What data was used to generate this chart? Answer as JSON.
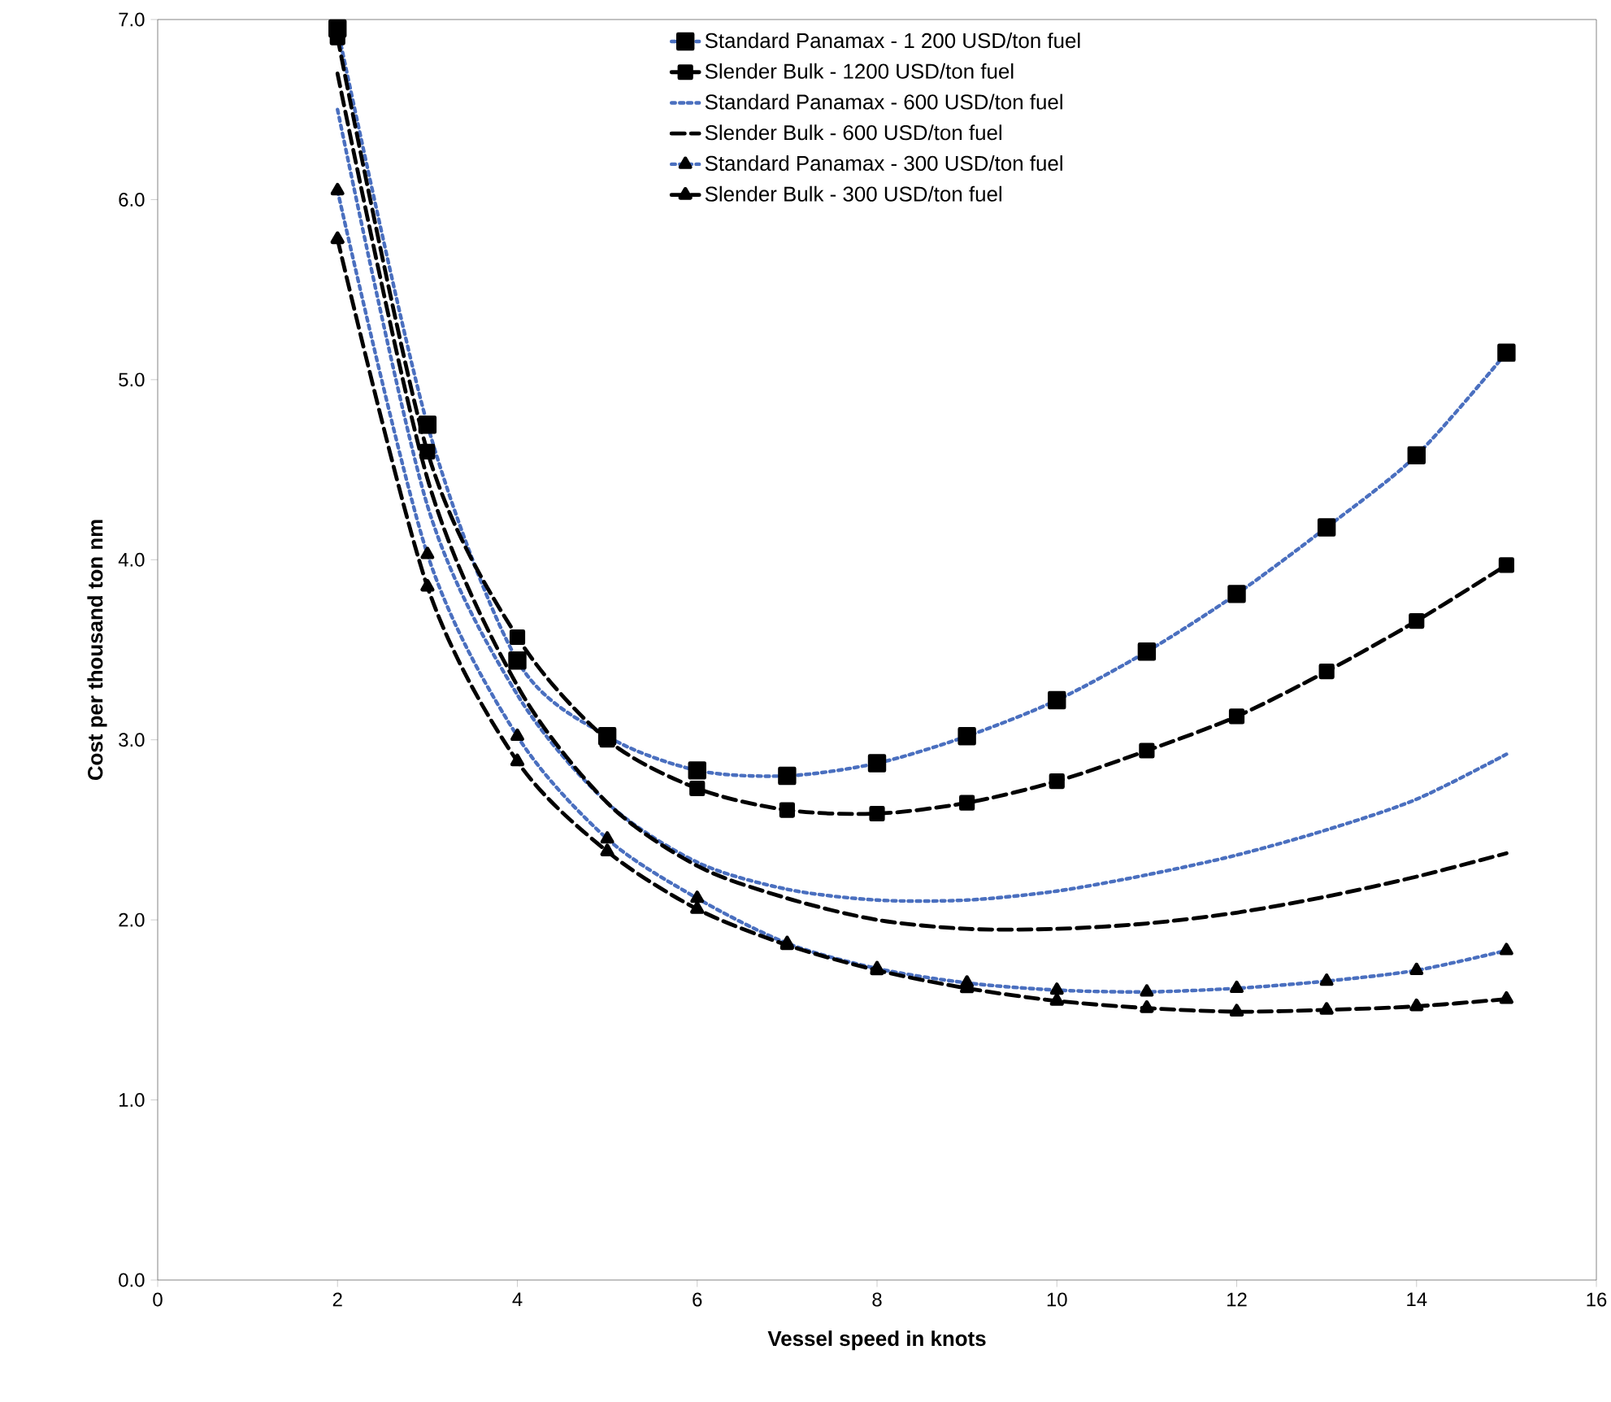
{
  "chart_data": {
    "type": "line",
    "xlabel": "Vessel speed in knots",
    "ylabel": "Cost per thousand ton nm",
    "x": [
      2,
      3,
      4,
      5,
      6,
      7,
      8,
      9,
      10,
      11,
      12,
      13,
      14,
      15
    ],
    "xlim": [
      0,
      16
    ],
    "xticks": [
      0,
      2,
      4,
      6,
      8,
      10,
      12,
      14,
      16
    ],
    "ylim": [
      0,
      7
    ],
    "yticks": [
      {
        "value": 0,
        "label": "0.0"
      },
      {
        "value": 1,
        "label": "1.0"
      },
      {
        "value": 2,
        "label": "2.0"
      },
      {
        "value": 3,
        "label": "3.0"
      },
      {
        "value": 4,
        "label": "4.0"
      },
      {
        "value": 5,
        "label": "5.0"
      },
      {
        "value": 6,
        "label": "6.0"
      },
      {
        "value": 7,
        "label": "7.0"
      }
    ],
    "grid": false,
    "legend": "top",
    "series": [
      {
        "name": "Standard Panamax - 1 200 USD/ton fuel",
        "color": "#4a6fbf",
        "marker": "square",
        "line_style": "dotted",
        "values": [
          6.95,
          4.75,
          3.44,
          3.02,
          2.83,
          2.8,
          2.87,
          3.02,
          3.22,
          3.49,
          3.81,
          4.18,
          4.58,
          5.15
        ]
      },
      {
        "name": "Slender Bulk - 1200 USD/ton fuel",
        "color": "#000000",
        "marker": "square",
        "line_style": "dashed",
        "values": [
          6.9,
          4.6,
          3.57,
          3.0,
          2.73,
          2.61,
          2.59,
          2.65,
          2.77,
          2.94,
          3.13,
          3.38,
          3.66,
          3.97
        ]
      },
      {
        "name": "Standard Panamax - 600 USD/ton fuel",
        "color": "#4a6fbf",
        "marker": "none",
        "line_style": "dotted",
        "values": [
          6.5,
          4.3,
          3.25,
          2.65,
          2.32,
          2.17,
          2.11,
          2.11,
          2.16,
          2.25,
          2.36,
          2.5,
          2.67,
          2.92
        ]
      },
      {
        "name": "Slender Bulk - 600 USD/ton fuel",
        "color": "#000000",
        "marker": "none",
        "line_style": "dashed",
        "values": [
          6.7,
          4.45,
          3.3,
          2.65,
          2.3,
          2.12,
          2.0,
          1.95,
          1.95,
          1.98,
          2.04,
          2.13,
          2.24,
          2.37
        ]
      },
      {
        "name": "Standard Panamax - 300 USD/ton fuel",
        "color": "#4a6fbf",
        "marker": "triangle",
        "line_style": "dotted",
        "values": [
          6.05,
          4.03,
          3.02,
          2.45,
          2.12,
          1.87,
          1.73,
          1.65,
          1.61,
          1.6,
          1.62,
          1.66,
          1.72,
          1.83
        ]
      },
      {
        "name": "Slender Bulk - 300 USD/ton fuel",
        "color": "#000000",
        "marker": "triangle",
        "line_style": "dashed",
        "values": [
          5.78,
          3.85,
          2.88,
          2.38,
          2.06,
          1.86,
          1.72,
          1.62,
          1.55,
          1.51,
          1.49,
          1.5,
          1.52,
          1.56
        ]
      }
    ]
  }
}
